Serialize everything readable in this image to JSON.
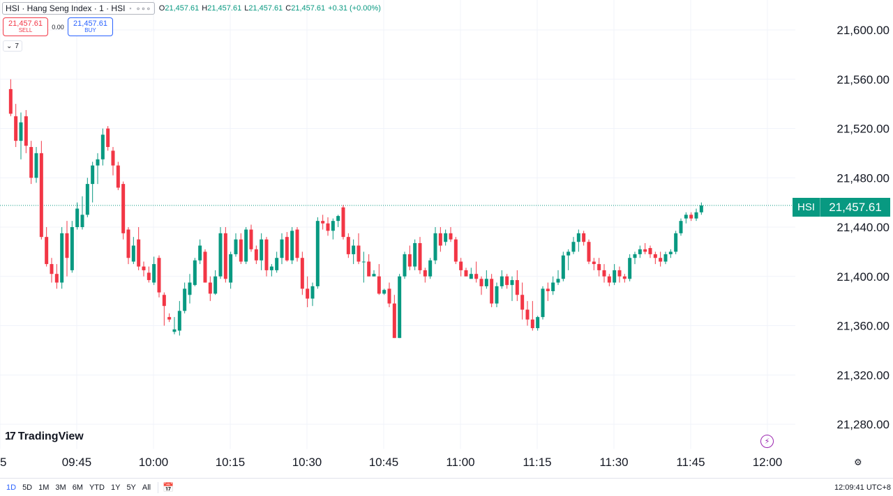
{
  "legend": {
    "title": "HSI · Hang Seng Index · 1 · HSI",
    "square_icon": "square-icon",
    "more_icon": "more-dots-icon",
    "o_key": "O",
    "o_val": "21,457.61",
    "h_key": "H",
    "h_val": "21,457.61",
    "l_key": "L",
    "l_val": "21,457.61",
    "c_key": "C",
    "c_val": "21,457.61",
    "change": "+0.31 (+0.00%)"
  },
  "trade": {
    "sell_price": "21,457.61",
    "sell_label": "SELL",
    "spread": "0.00",
    "buy_price": "21,457.61",
    "buy_label": "BUY"
  },
  "indicators": {
    "count": "7",
    "icon": "chevron-down-icon"
  },
  "logo": {
    "mark": "17",
    "text": "TradingView"
  },
  "price_badge": {
    "symbol": "HSI",
    "value": "21,457.61"
  },
  "bottom": {
    "ranges": [
      "1D",
      "5D",
      "1M",
      "3M",
      "6M",
      "YTD",
      "1Y",
      "5Y",
      "All"
    ],
    "active_range": "1D",
    "clock": "12:09:41 UTC+8",
    "calendar_icon": "calendar-range-icon",
    "settings_icon": "settings-icon"
  },
  "colors": {
    "up": "#089981",
    "down": "#f23645",
    "grid": "#f0f3fa",
    "axis_text": "#131722",
    "last_price_line": "#089981"
  },
  "chart_data": {
    "type": "candlestick",
    "title": "",
    "xlabel": "",
    "ylabel": "",
    "ylim": [
      21260,
      21630
    ],
    "y_ticks": [
      "21,600.00",
      "21,560.00",
      "21,520.00",
      "21,480.00",
      "21,440.00",
      "21,400.00",
      "21,360.00",
      "21,320.00",
      "21,280.00"
    ],
    "y_tick_values": [
      21600,
      21560,
      21520,
      21480,
      21440,
      21400,
      21360,
      21320,
      21280
    ],
    "x_ticks": [
      "5",
      "09:45",
      "10:00",
      "10:15",
      "10:30",
      "10:45",
      "11:00",
      "11:15",
      "11:30",
      "11:45",
      "12:00"
    ],
    "x_tick_times": [
      "09:30",
      "09:45",
      "10:00",
      "10:15",
      "10:30",
      "10:45",
      "11:00",
      "11:15",
      "11:30",
      "11:45",
      "12:00"
    ],
    "last_price": 21457.61,
    "bar_interval": "1 minute",
    "first_bar_time": "09:31",
    "candles": [
      [
        21552,
        21560,
        21530,
        21532
      ],
      [
        21530,
        21540,
        21505,
        21510
      ],
      [
        21510,
        21533,
        21495,
        21525
      ],
      [
        21530,
        21535,
        21500,
        21506
      ],
      [
        21505,
        21510,
        21475,
        21480
      ],
      [
        21480,
        21505,
        21476,
        21500
      ],
      [
        21500,
        21510,
        21430,
        21432
      ],
      [
        21432,
        21440,
        21408,
        21410
      ],
      [
        21410,
        21415,
        21395,
        21402
      ],
      [
        21402,
        21410,
        21390,
        21395
      ],
      [
        21395,
        21440,
        21390,
        21435
      ],
      [
        21435,
        21445,
        21400,
        21415
      ],
      [
        21405,
        21445,
        21403,
        21440
      ],
      [
        21440,
        21460,
        21438,
        21455
      ],
      [
        21440,
        21465,
        21438,
        21450
      ],
      [
        21450,
        21480,
        21448,
        21475
      ],
      [
        21475,
        21493,
        21460,
        21490
      ],
      [
        21490,
        21500,
        21475,
        21495
      ],
      [
        21495,
        21520,
        21490,
        21515
      ],
      [
        21520,
        21522,
        21502,
        21505
      ],
      [
        21502,
        21505,
        21482,
        21490
      ],
      [
        21490,
        21493,
        21470,
        21472
      ],
      [
        21475,
        21477,
        21430,
        21435
      ],
      [
        21438,
        21440,
        21410,
        21415
      ],
      [
        21412,
        21432,
        21410,
        21425
      ],
      [
        21430,
        21440,
        21405,
        21408
      ],
      [
        21408,
        21412,
        21400,
        21405
      ],
      [
        21403,
        21408,
        21395,
        21397
      ],
      [
        21395,
        21416,
        21393,
        21410
      ],
      [
        21415,
        21417,
        21383,
        21387
      ],
      [
        21385,
        21387,
        21360,
        21376
      ],
      [
        21367,
        21370,
        21363,
        21365
      ],
      [
        21355,
        21367,
        21353,
        21357
      ],
      [
        21356,
        21380,
        21352,
        21372
      ],
      [
        21372,
        21395,
        21370,
        21390
      ],
      [
        21385,
        21402,
        21378,
        21395
      ],
      [
        21393,
        21415,
        21392,
        21413
      ],
      [
        21413,
        21430,
        21410,
        21425
      ],
      [
        21420,
        21422,
        21395,
        21395
      ],
      [
        21395,
        21400,
        21380,
        21386
      ],
      [
        21386,
        21405,
        21385,
        21400
      ],
      [
        21400,
        21440,
        21398,
        21435
      ],
      [
        21435,
        21440,
        21395,
        21398
      ],
      [
        21395,
        21420,
        21390,
        21418
      ],
      [
        21418,
        21435,
        21416,
        21430
      ],
      [
        21430,
        21435,
        21410,
        21412
      ],
      [
        21412,
        21440,
        21410,
        21438
      ],
      [
        21438,
        21442,
        21420,
        21422
      ],
      [
        21422,
        21425,
        21410,
        21413
      ],
      [
        21413,
        21435,
        21405,
        21430
      ],
      [
        21430,
        21432,
        21400,
        21405
      ],
      [
        21405,
        21410,
        21400,
        21408
      ],
      [
        21405,
        21420,
        21403,
        21415
      ],
      [
        21415,
        21435,
        21410,
        21430
      ],
      [
        21432,
        21436,
        21412,
        21413
      ],
      [
        21413,
        21440,
        21410,
        21437
      ],
      [
        21438,
        21440,
        21412,
        21415
      ],
      [
        21415,
        21420,
        21385,
        21390
      ],
      [
        21390,
        21400,
        21375,
        21382
      ],
      [
        21382,
        21395,
        21376,
        21392
      ],
      [
        21392,
        21448,
        21390,
        21445
      ],
      [
        21445,
        21450,
        21438,
        21443
      ],
      [
        21443,
        21448,
        21433,
        21437
      ],
      [
        21437,
        21447,
        21430,
        21445
      ],
      [
        21445,
        21450,
        21440,
        21449
      ],
      [
        21456,
        21458,
        21430,
        21432
      ],
      [
        21432,
        21435,
        21415,
        21418
      ],
      [
        21418,
        21430,
        21410,
        21425
      ],
      [
        21425,
        21435,
        21410,
        21412
      ],
      [
        21412,
        21420,
        21395,
        21412
      ],
      [
        21412,
        21418,
        21400,
        21400
      ],
      [
        21400,
        21405,
        21400,
        21402
      ],
      [
        21400,
        21410,
        21385,
        21386
      ],
      [
        21386,
        21390,
        21385,
        21389
      ],
      [
        21390,
        21395,
        21375,
        21378
      ],
      [
        21378,
        21385,
        21350,
        21350
      ],
      [
        21350,
        21402,
        21350,
        21400
      ],
      [
        21400,
        21420,
        21398,
        21418
      ],
      [
        21418,
        21425,
        21405,
        21408
      ],
      [
        21408,
        21430,
        21405,
        21427
      ],
      [
        21427,
        21432,
        21402,
        21405
      ],
      [
        21405,
        21407,
        21395,
        21400
      ],
      [
        21400,
        21415,
        21398,
        21413
      ],
      [
        21413,
        21440,
        21410,
        21435
      ],
      [
        21435,
        21440,
        21420,
        21425
      ],
      [
        21428,
        21438,
        21425,
        21435
      ],
      [
        21435,
        21440,
        21428,
        21430
      ],
      [
        21430,
        21432,
        21410,
        21412
      ],
      [
        21412,
        21415,
        21400,
        21405
      ],
      [
        21405,
        21407,
        21400,
        21400
      ],
      [
        21398,
        21407,
        21400,
        21402
      ],
      [
        21402,
        21412,
        21395,
        21398
      ],
      [
        21398,
        21400,
        21385,
        21392
      ],
      [
        21392,
        21405,
        21390,
        21398
      ],
      [
        21398,
        21402,
        21375,
        21378
      ],
      [
        21378,
        21395,
        21375,
        21392
      ],
      [
        21392,
        21405,
        21390,
        21400
      ],
      [
        21400,
        21402,
        21390,
        21393
      ],
      [
        21393,
        21400,
        21380,
        21397
      ],
      [
        21397,
        21405,
        21380,
        21385
      ],
      [
        21385,
        21395,
        21365,
        21373
      ],
      [
        21373,
        21380,
        21360,
        21365
      ],
      [
        21365,
        21380,
        21356,
        21358
      ],
      [
        21358,
        21368,
        21356,
        21367
      ],
      [
        21367,
        21392,
        21365,
        21390
      ],
      [
        21390,
        21395,
        21380,
        21388
      ],
      [
        21388,
        21400,
        21385,
        21395
      ],
      [
        21395,
        21405,
        21393,
        21398
      ],
      [
        21398,
        21420,
        21396,
        21417
      ],
      [
        21417,
        21422,
        21405,
        21420
      ],
      [
        21420,
        21432,
        21418,
        21428
      ],
      [
        21428,
        21438,
        21420,
        21435
      ],
      [
        21435,
        21437,
        21425,
        21428
      ],
      [
        21428,
        21430,
        21410,
        21412
      ],
      [
        21412,
        21415,
        21405,
        21410
      ],
      [
        21410,
        21415,
        21400,
        21405
      ],
      [
        21405,
        21410,
        21395,
        21400
      ],
      [
        21400,
        21402,
        21392,
        21395
      ],
      [
        21395,
        21410,
        21393,
        21405
      ],
      [
        21405,
        21408,
        21395,
        21400
      ],
      [
        21400,
        21402,
        21395,
        21398
      ],
      [
        21398,
        21418,
        21396,
        21415
      ],
      [
        21415,
        21420,
        21410,
        21418
      ],
      [
        21418,
        21425,
        21415,
        21422
      ],
      [
        21422,
        21427,
        21418,
        21420
      ],
      [
        21423,
        21425,
        21415,
        21418
      ],
      [
        21418,
        21420,
        21410,
        21415
      ],
      [
        21415,
        21420,
        21408,
        21412
      ],
      [
        21412,
        21420,
        21410,
        21418
      ],
      [
        21418,
        21422,
        21415,
        21420
      ],
      [
        21420,
        21437,
        21418,
        21435
      ],
      [
        21435,
        21447,
        21433,
        21445
      ],
      [
        21447,
        21452,
        21443,
        21450
      ],
      [
        21450,
        21452,
        21445,
        21447
      ],
      [
        21447,
        21455,
        21445,
        21452
      ],
      [
        21452,
        21460,
        21450,
        21457.61
      ]
    ]
  }
}
